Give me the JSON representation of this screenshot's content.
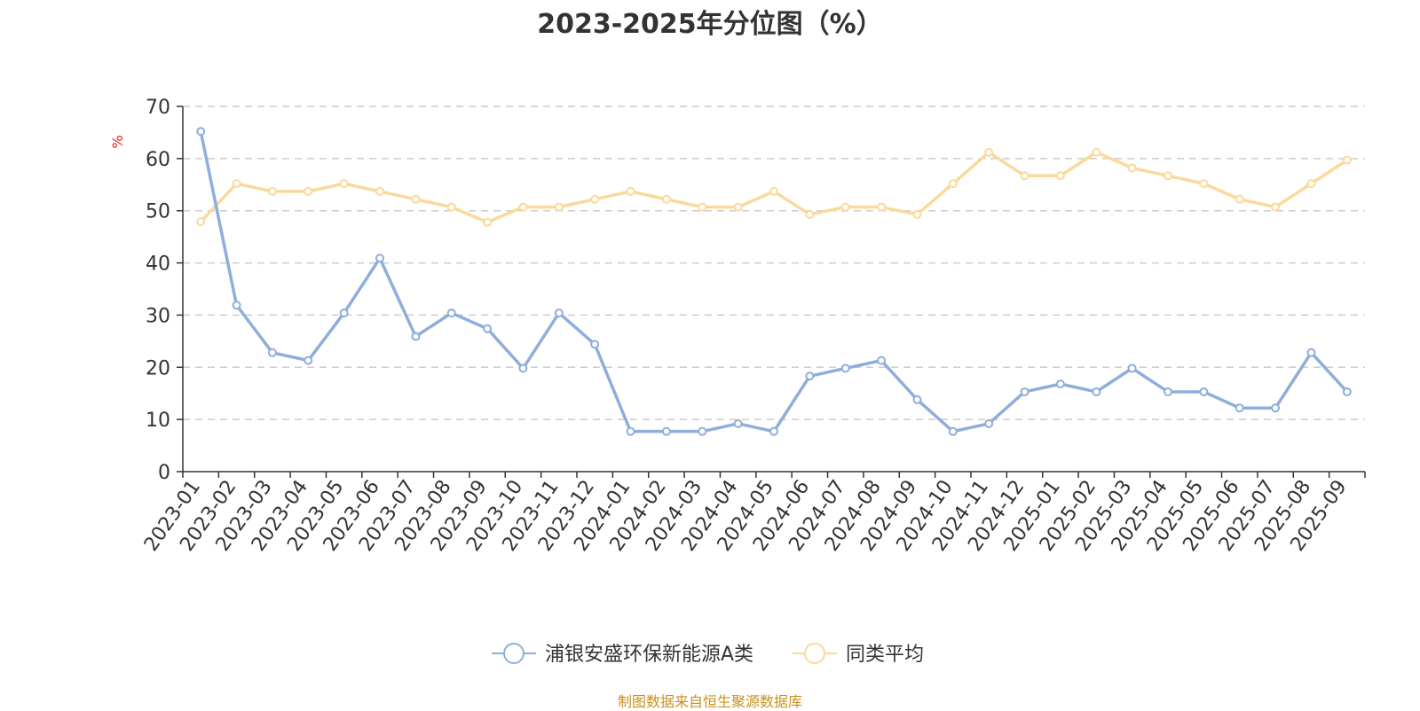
{
  "title": "2023-2025年分位图（%）",
  "source": "制图数据来自恒生聚源数据库",
  "colors": {
    "series1": "#8eaedb",
    "series2": "#fad99b",
    "grid": "#cccccc",
    "axis": "#333333",
    "unit": "#e02020"
  },
  "chart_data": {
    "type": "line",
    "ylabel": "%",
    "xlabel": "",
    "ylim": [
      0,
      70
    ],
    "yticks": [
      0,
      10,
      20,
      30,
      40,
      50,
      60,
      70
    ],
    "grid": true,
    "legend_position": "bottom-center",
    "categories": [
      "2023-01",
      "2023-02",
      "2023-03",
      "2023-04",
      "2023-05",
      "2023-06",
      "2023-07",
      "2023-08",
      "2023-09",
      "2023-10",
      "2023-11",
      "2023-12",
      "2024-01",
      "2024-02",
      "2024-03",
      "2024-04",
      "2024-05",
      "2024-06",
      "2024-07",
      "2024-08",
      "2024-09",
      "2024-10",
      "2024-11",
      "2024-12",
      "2025-01",
      "2025-02",
      "2025-03",
      "2025-04",
      "2025-05",
      "2025-06",
      "2025-07",
      "2025-08",
      "2025-09"
    ],
    "series": [
      {
        "name": "浦银安盛环保新能源A类",
        "values": [
          65.2,
          31.9,
          22.8,
          21.3,
          30.4,
          40.9,
          25.9,
          30.4,
          27.4,
          19.8,
          30.4,
          24.4,
          7.7,
          7.7,
          7.7,
          9.2,
          7.7,
          18.3,
          19.8,
          21.3,
          13.8,
          7.7,
          9.2,
          15.3,
          16.8,
          15.3,
          19.8,
          15.3,
          15.3,
          12.2,
          12.2,
          22.8,
          15.3
        ]
      },
      {
        "name": "同类平均",
        "values": [
          47.9,
          55.2,
          53.7,
          53.7,
          55.2,
          53.7,
          52.2,
          50.7,
          47.8,
          50.7,
          50.7,
          52.2,
          53.7,
          52.2,
          50.7,
          50.7,
          53.7,
          49.3,
          50.7,
          50.7,
          49.3,
          55.2,
          61.2,
          56.7,
          56.7,
          61.2,
          58.2,
          56.7,
          55.2,
          52.2,
          50.7,
          55.2,
          59.7
        ]
      }
    ]
  }
}
